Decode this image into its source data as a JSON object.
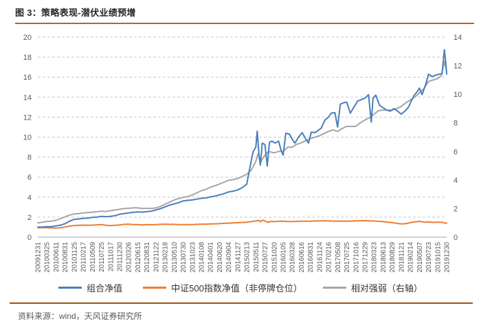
{
  "header": {
    "title": "图 3：策略表现-潜伏业绩预增"
  },
  "footer": {
    "source": "资料来源：wind，天风证券研究所"
  },
  "colors": {
    "title_rule": "#bc6321",
    "footer_rule": "#9a5513",
    "grid": "#c9c9c9",
    "axis_line": "#a6a6a6",
    "tick_text": "#595959",
    "legend_text": "#333333"
  },
  "chart_data": {
    "type": "line",
    "title": "策略表现-潜伏业绩预增",
    "grid": "horizontal-dashed",
    "legend_position": "bottom",
    "categories": [
      "20091231",
      "20100325",
      "20100611",
      "20100831",
      "20101125",
      "20110217",
      "20110509",
      "20110725",
      "20111017",
      "20111230",
      "20120326",
      "20120615",
      "20120831",
      "20121122",
      "20130218",
      "20130510",
      "20130730",
      "20131023",
      "20140108",
      "20140401",
      "20140620",
      "20140904",
      "20141127",
      "20150213",
      "20150511",
      "20150727",
      "20151020",
      "20160105",
      "20160328",
      "20160616",
      "20160831",
      "20161124",
      "20170216",
      "20170508",
      "20170725",
      "20171016",
      "20171229",
      "20180323",
      "20180613",
      "20180829",
      "20181121",
      "20190214",
      "20190507",
      "20190723",
      "20191015",
      "20191230"
    ],
    "y_left": {
      "min": 0,
      "max": 20,
      "step": 2,
      "ticks": [
        0,
        2,
        4,
        6,
        8,
        10,
        12,
        14,
        16,
        18,
        20
      ]
    },
    "y_right": {
      "min": 0,
      "max": 14,
      "step": 2,
      "ticks": [
        0,
        2,
        4,
        6,
        8,
        10,
        12,
        14
      ]
    },
    "series": [
      {
        "name": "组合净值",
        "color": "#4a7ebb",
        "axis": "left",
        "points": [
          [
            0,
            1.0
          ],
          [
            0.5,
            1.02
          ],
          [
            1,
            1.05
          ],
          [
            1.5,
            1.05
          ],
          [
            2,
            1.12
          ],
          [
            2.5,
            1.2
          ],
          [
            3,
            1.35
          ],
          [
            3.5,
            1.6
          ],
          [
            4,
            1.78
          ],
          [
            4.5,
            1.82
          ],
          [
            5,
            1.88
          ],
          [
            5.5,
            1.9
          ],
          [
            6,
            1.98
          ],
          [
            6.5,
            2.0
          ],
          [
            7,
            2.08
          ],
          [
            7.5,
            2.05
          ],
          [
            8,
            2.08
          ],
          [
            8.5,
            2.15
          ],
          [
            9,
            2.28
          ],
          [
            9.5,
            2.35
          ],
          [
            10,
            2.42
          ],
          [
            10.5,
            2.48
          ],
          [
            11,
            2.52
          ],
          [
            11.5,
            2.5
          ],
          [
            12,
            2.55
          ],
          [
            12.5,
            2.6
          ],
          [
            13,
            2.72
          ],
          [
            13.5,
            2.85
          ],
          [
            14,
            3.02
          ],
          [
            14.5,
            3.2
          ],
          [
            15,
            3.32
          ],
          [
            15.5,
            3.45
          ],
          [
            16,
            3.62
          ],
          [
            16.5,
            3.68
          ],
          [
            17,
            3.72
          ],
          [
            17.5,
            3.8
          ],
          [
            18,
            3.88
          ],
          [
            18.5,
            3.92
          ],
          [
            19,
            4.02
          ],
          [
            19.5,
            4.1
          ],
          [
            20,
            4.22
          ],
          [
            20.5,
            4.35
          ],
          [
            21,
            4.52
          ],
          [
            21.5,
            4.6
          ],
          [
            22,
            4.72
          ],
          [
            22.5,
            4.95
          ],
          [
            23,
            5.3
          ],
          [
            23.4,
            7.2
          ],
          [
            23.7,
            8.55
          ],
          [
            24,
            9.0
          ],
          [
            24.15,
            10.6
          ],
          [
            24.35,
            8.2
          ],
          [
            24.5,
            7.2
          ],
          [
            24.7,
            9.4
          ],
          [
            25,
            9.25
          ],
          [
            25.25,
            7.1
          ],
          [
            25.5,
            9.5
          ],
          [
            25.8,
            9.6
          ],
          [
            26.1,
            9.4
          ],
          [
            26.5,
            9.6
          ],
          [
            26.8,
            8.6
          ],
          [
            27,
            8.2
          ],
          [
            27.3,
            10.4
          ],
          [
            27.7,
            10.3
          ],
          [
            28,
            9.8
          ],
          [
            28.3,
            9.4
          ],
          [
            28.7,
            10.0
          ],
          [
            29.1,
            10.45
          ],
          [
            29.5,
            9.8
          ],
          [
            29.8,
            9.4
          ],
          [
            30.1,
            10.5
          ],
          [
            30.5,
            10.45
          ],
          [
            30.9,
            10.7
          ],
          [
            31.2,
            10.9
          ],
          [
            31.6,
            11.7
          ],
          [
            32,
            12.0
          ],
          [
            32.3,
            12.4
          ],
          [
            32.7,
            12.45
          ],
          [
            33,
            11.0
          ],
          [
            33.3,
            13.3
          ],
          [
            33.7,
            13.45
          ],
          [
            34,
            13.5
          ],
          [
            34.4,
            12.4
          ],
          [
            34.8,
            13.0
          ],
          [
            35.2,
            13.6
          ],
          [
            35.6,
            13.75
          ],
          [
            36,
            13.9
          ],
          [
            36.4,
            14.25
          ],
          [
            36.7,
            11.5
          ],
          [
            36.9,
            13.9
          ],
          [
            37.2,
            14.2
          ],
          [
            37.6,
            13.2
          ],
          [
            38,
            12.95
          ],
          [
            38.4,
            12.7
          ],
          [
            38.8,
            12.6
          ],
          [
            39.2,
            12.85
          ],
          [
            39.6,
            12.6
          ],
          [
            40,
            12.3
          ],
          [
            40.4,
            12.6
          ],
          [
            40.8,
            13.0
          ],
          [
            41,
            13.4
          ],
          [
            41.4,
            14.15
          ],
          [
            41.8,
            14.6
          ],
          [
            42,
            14.9
          ],
          [
            42.3,
            14.25
          ],
          [
            42.7,
            15.3
          ],
          [
            43,
            16.3
          ],
          [
            43.4,
            16.05
          ],
          [
            43.8,
            16.2
          ],
          [
            44.2,
            16.3
          ],
          [
            44.5,
            16.35
          ],
          [
            44.75,
            18.75
          ],
          [
            44.9,
            17.5
          ],
          [
            45,
            16.3
          ]
        ]
      },
      {
        "name": "中证500指数净值（非停牌仓位）",
        "color": "#ed7d31",
        "axis": "left",
        "points": [
          [
            0,
            0.95
          ],
          [
            1,
            0.95
          ],
          [
            1.5,
            0.92
          ],
          [
            2,
            0.9
          ],
          [
            2.5,
            0.95
          ],
          [
            3,
            1.02
          ],
          [
            3.5,
            1.1
          ],
          [
            4,
            1.16
          ],
          [
            4.5,
            1.18
          ],
          [
            5,
            1.2
          ],
          [
            5.5,
            1.18
          ],
          [
            6,
            1.2
          ],
          [
            6.5,
            1.22
          ],
          [
            7,
            1.25
          ],
          [
            7.5,
            1.18
          ],
          [
            8,
            1.15
          ],
          [
            8.5,
            1.18
          ],
          [
            9,
            1.22
          ],
          [
            9.5,
            1.28
          ],
          [
            10,
            1.3
          ],
          [
            10.5,
            1.25
          ],
          [
            11,
            1.25
          ],
          [
            11.5,
            1.22
          ],
          [
            12,
            1.25
          ],
          [
            12.5,
            1.24
          ],
          [
            13,
            1.26
          ],
          [
            13.5,
            1.28
          ],
          [
            14,
            1.3
          ],
          [
            14.5,
            1.28
          ],
          [
            15,
            1.28
          ],
          [
            15.5,
            1.26
          ],
          [
            16,
            1.25
          ],
          [
            16.5,
            1.26
          ],
          [
            17,
            1.26
          ],
          [
            17.5,
            1.28
          ],
          [
            18,
            1.3
          ],
          [
            18.5,
            1.3
          ],
          [
            19,
            1.32
          ],
          [
            19.5,
            1.33
          ],
          [
            20,
            1.35
          ],
          [
            20.5,
            1.38
          ],
          [
            21,
            1.4
          ],
          [
            21.5,
            1.42
          ],
          [
            22,
            1.44
          ],
          [
            22.5,
            1.47
          ],
          [
            23,
            1.5
          ],
          [
            23.5,
            1.55
          ],
          [
            24,
            1.62
          ],
          [
            24.3,
            1.68
          ],
          [
            24.5,
            1.55
          ],
          [
            24.8,
            1.7
          ],
          [
            25,
            1.62
          ],
          [
            25.3,
            1.48
          ],
          [
            25.7,
            1.58
          ],
          [
            26,
            1.55
          ],
          [
            26.5,
            1.58
          ],
          [
            27,
            1.6
          ],
          [
            27.5,
            1.56
          ],
          [
            28,
            1.55
          ],
          [
            28.5,
            1.58
          ],
          [
            29,
            1.6
          ],
          [
            29.5,
            1.6
          ],
          [
            30,
            1.6
          ],
          [
            30.5,
            1.62
          ],
          [
            31,
            1.62
          ],
          [
            31.5,
            1.63
          ],
          [
            32,
            1.62
          ],
          [
            32.5,
            1.6
          ],
          [
            33,
            1.6
          ],
          [
            33.5,
            1.61
          ],
          [
            34,
            1.6
          ],
          [
            34.5,
            1.61
          ],
          [
            35,
            1.62
          ],
          [
            35.5,
            1.64
          ],
          [
            36,
            1.65
          ],
          [
            36.5,
            1.62
          ],
          [
            37,
            1.62
          ],
          [
            37.5,
            1.58
          ],
          [
            38,
            1.55
          ],
          [
            38.5,
            1.5
          ],
          [
            39,
            1.45
          ],
          [
            39.5,
            1.38
          ],
          [
            40,
            1.32
          ],
          [
            40.5,
            1.35
          ],
          [
            41,
            1.45
          ],
          [
            41.5,
            1.52
          ],
          [
            42,
            1.58
          ],
          [
            42.5,
            1.5
          ],
          [
            43,
            1.52
          ],
          [
            43.5,
            1.48
          ],
          [
            44,
            1.5
          ],
          [
            44.5,
            1.48
          ],
          [
            45,
            1.38
          ]
        ]
      },
      {
        "name": "相对强弱（右轴）",
        "color": "#a5a5a5",
        "axis": "right",
        "points": [
          [
            0,
            1.0
          ],
          [
            0.5,
            1.05
          ],
          [
            1,
            1.1
          ],
          [
            1.5,
            1.12
          ],
          [
            2,
            1.18
          ],
          [
            2.5,
            1.3
          ],
          [
            3,
            1.42
          ],
          [
            3.5,
            1.55
          ],
          [
            4,
            1.62
          ],
          [
            4.5,
            1.65
          ],
          [
            5,
            1.7
          ],
          [
            5.5,
            1.72
          ],
          [
            6,
            1.75
          ],
          [
            6.5,
            1.78
          ],
          [
            7,
            1.82
          ],
          [
            7.5,
            1.8
          ],
          [
            8,
            1.85
          ],
          [
            8.5,
            1.9
          ],
          [
            9,
            1.95
          ],
          [
            9.5,
            2.0
          ],
          [
            10,
            2.02
          ],
          [
            10.5,
            2.05
          ],
          [
            11,
            2.05
          ],
          [
            11.5,
            2.0
          ],
          [
            12,
            2.02
          ],
          [
            12.5,
            2.0
          ],
          [
            13,
            2.05
          ],
          [
            13.5,
            2.15
          ],
          [
            14,
            2.3
          ],
          [
            14.5,
            2.45
          ],
          [
            15,
            2.6
          ],
          [
            15.5,
            2.7
          ],
          [
            16,
            2.78
          ],
          [
            16.5,
            2.85
          ],
          [
            17,
            2.95
          ],
          [
            17.5,
            3.1
          ],
          [
            18,
            3.25
          ],
          [
            18.5,
            3.35
          ],
          [
            19,
            3.5
          ],
          [
            19.5,
            3.6
          ],
          [
            20,
            3.72
          ],
          [
            20.5,
            3.85
          ],
          [
            21,
            3.98
          ],
          [
            21.5,
            4.02
          ],
          [
            22,
            4.1
          ],
          [
            22.5,
            4.25
          ],
          [
            23,
            4.4
          ],
          [
            23.5,
            4.7
          ],
          [
            24,
            5.3
          ],
          [
            24.25,
            5.85
          ],
          [
            24.5,
            5.2
          ],
          [
            24.75,
            5.5
          ],
          [
            25,
            5.75
          ],
          [
            25.4,
            6.0
          ],
          [
            26,
            5.9
          ],
          [
            26.5,
            6.0
          ],
          [
            27,
            6.0
          ],
          [
            27.5,
            6.3
          ],
          [
            28,
            6.3
          ],
          [
            28.5,
            6.5
          ],
          [
            29,
            6.6
          ],
          [
            29.5,
            6.75
          ],
          [
            30,
            6.9
          ],
          [
            30.5,
            7.0
          ],
          [
            31,
            7.1
          ],
          [
            31.5,
            7.25
          ],
          [
            32,
            7.4
          ],
          [
            32.5,
            7.5
          ],
          [
            33,
            7.4
          ],
          [
            33.5,
            7.6
          ],
          [
            34,
            7.75
          ],
          [
            34.5,
            7.75
          ],
          [
            35,
            7.75
          ],
          [
            35.5,
            8.0
          ],
          [
            36,
            8.2
          ],
          [
            36.5,
            8.35
          ],
          [
            37,
            8.6
          ],
          [
            37.5,
            8.85
          ],
          [
            38,
            8.9
          ],
          [
            38.5,
            8.88
          ],
          [
            39,
            8.9
          ],
          [
            39.5,
            9.0
          ],
          [
            40,
            9.15
          ],
          [
            40.5,
            9.4
          ],
          [
            41,
            9.6
          ],
          [
            41.5,
            9.8
          ],
          [
            42,
            10.1
          ],
          [
            42.5,
            10.4
          ],
          [
            43,
            10.9
          ],
          [
            43.5,
            11.0
          ],
          [
            44,
            11.1
          ],
          [
            44.4,
            11.3
          ],
          [
            44.75,
            12.3
          ],
          [
            45,
            11.6
          ]
        ]
      }
    ]
  }
}
